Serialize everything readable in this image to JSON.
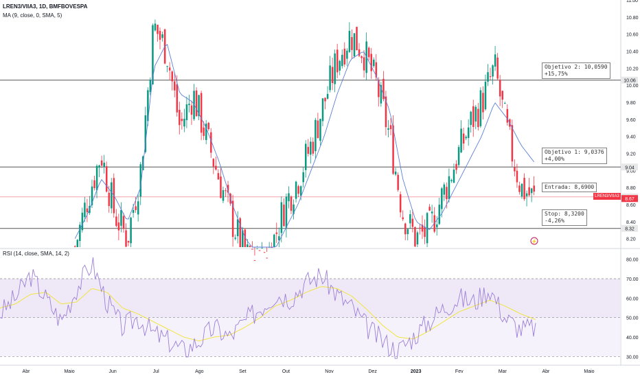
{
  "header": {
    "symbol_line": "LREN3/VIIA3, 1D, BMFBOVESPA",
    "ma_line": "MA (9, close, 0, SMA, 5)",
    "rsi_line": "RSI (14, close, SMA, 14, 2)"
  },
  "price_axis": {
    "ticks": [
      "11.00",
      "10.80",
      "10.60",
      "10.40",
      "10.20",
      "10.00",
      "9.80",
      "9.60",
      "9.40",
      "9.20",
      "9.00",
      "8.80",
      "8.60",
      "8.40",
      "8.20"
    ],
    "tags": [
      {
        "label": "10.06",
        "value": 10.06,
        "bg": "#e8e8e8",
        "fg": "#131722"
      },
      {
        "label": "9.04",
        "value": 9.04,
        "bg": "#e8e8e8",
        "fg": "#131722"
      },
      {
        "label": "8.69",
        "value": 8.69,
        "bg": "#e8e8e8",
        "fg": "#131722"
      },
      {
        "label": "8.67",
        "value": 8.67,
        "bg": "#f23645",
        "fg": "#ffffff"
      },
      {
        "label": "8.32",
        "value": 8.32,
        "bg": "#e8e8e8",
        "fg": "#131722"
      }
    ],
    "symbol_tag": "LREN3/VIIA3"
  },
  "levels": [
    {
      "name": "objetivo-2",
      "value": 10.06,
      "label": "Objetivo 2: 10,0590\n+15,75%"
    },
    {
      "name": "objetivo-1",
      "value": 9.04,
      "label": "Objetivo 1: 9,0376\n+4,00%"
    },
    {
      "name": "entrada",
      "value": 8.69,
      "label": "Entrada: 8,6900"
    },
    {
      "name": "stop",
      "value": 8.32,
      "label": "Stop: 8,3200\n-4,26%"
    }
  ],
  "rsi_axis": {
    "ticks": [
      "80.00",
      "70.00",
      "60.00",
      "50.00",
      "40.00",
      "30.00"
    ]
  },
  "time_axis": {
    "labels": [
      "Abr",
      "Maio",
      "Jun",
      "Jul",
      "Ago",
      "Set",
      "Out",
      "Nov",
      "Dez",
      "2023",
      "Fev",
      "Mar",
      "Abr",
      "Maio"
    ]
  },
  "colors": {
    "up": "#089981",
    "down": "#f23645",
    "ma": "#5b7fd6",
    "rsi": "#9c7ed6",
    "rsi_ma": "#f0e442",
    "rsi_band": "#ede7f6"
  },
  "chart_data": [
    {
      "type": "candlestick",
      "title": "LREN3/VIIA3, 1D, BMFBOVESPA",
      "ylim": [
        8.1,
        11.0
      ],
      "x": [
        "Abr",
        "Maio",
        "Jun",
        "Jul",
        "Ago",
        "Set",
        "Out",
        "Nov",
        "Dez",
        "2023",
        "Fev",
        "Mar"
      ],
      "series": [
        {
          "name": "LREN3/VIIA3",
          "close_points": [
            8.1,
            8.7,
            9.2,
            8.5,
            8.2,
            9.0,
            10.7,
            10.4,
            9.5,
            9.9,
            9.4,
            8.9,
            8.4,
            8.0,
            7.9,
            8.1,
            8.6,
            8.9,
            9.3,
            9.8,
            10.3,
            10.6,
            10.4,
            10.0,
            9.4,
            8.5,
            8.2,
            8.3,
            8.7,
            9.1,
            9.5,
            9.8,
            10.2,
            9.4,
            8.8,
            8.67
          ]
        },
        {
          "name": "MA (9, close, 0, SMA, 5)",
          "close_points": [
            8.2,
            8.5,
            8.9,
            8.7,
            8.4,
            8.8,
            10.2,
            10.5,
            9.9,
            9.8,
            9.5,
            9.1,
            8.6,
            8.2,
            8.0,
            8.0,
            8.3,
            8.6,
            9.0,
            9.4,
            9.9,
            10.3,
            10.4,
            10.1,
            9.7,
            8.9,
            8.4,
            8.3,
            8.5,
            8.8,
            9.1,
            9.4,
            9.8,
            9.6,
            9.3,
            9.1
          ]
        }
      ]
    },
    {
      "type": "line",
      "title": "RSI (14, close, SMA, 14, 2)",
      "ylim": [
        30,
        80
      ],
      "band": [
        50,
        70
      ],
      "series": [
        {
          "name": "RSI",
          "values": [
            52,
            60,
            72,
            60,
            48,
            65,
            78,
            58,
            45,
            50,
            42,
            38,
            33,
            38,
            45,
            40,
            48,
            55,
            62,
            60,
            68,
            72,
            62,
            55,
            45,
            38,
            33,
            40,
            48,
            55,
            60,
            58,
            65,
            50,
            44,
            45
          ]
        },
        {
          "name": "RSI MA",
          "values": [
            55,
            57,
            62,
            63,
            57,
            58,
            65,
            63,
            55,
            52,
            48,
            44,
            40,
            38,
            40,
            41,
            45,
            50,
            56,
            59,
            63,
            66,
            65,
            61,
            54,
            46,
            40,
            39,
            43,
            48,
            53,
            56,
            59,
            56,
            52,
            49
          ]
        }
      ]
    }
  ]
}
